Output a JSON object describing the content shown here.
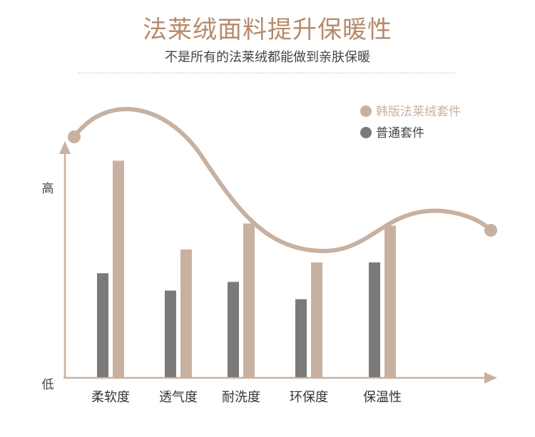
{
  "header": {
    "title": "法莱绒面料提升保暖性",
    "subtitle": "不是所有的法莱绒都能做到亲肤保暖"
  },
  "colors": {
    "accent": "#c8b1a0",
    "title": "#b68a6b",
    "gray": "#7a7a7a",
    "axis": "#c8b1a0"
  },
  "chart_data": {
    "type": "bar",
    "categories": [
      "柔软度",
      "透气度",
      "耐洗度",
      "环保度",
      "保温性"
    ],
    "series": [
      {
        "name": "普通套件",
        "color": "#7a7a7a",
        "values": [
          48,
          40,
          44,
          36,
          53
        ]
      },
      {
        "name": "韩版法莱绒套件",
        "color": "#c8b1a0",
        "values": [
          100,
          59,
          71,
          53,
          70
        ]
      }
    ],
    "ylim": [
      0,
      112
    ],
    "ytick_labels": {
      "high": "高",
      "low": "低"
    },
    "xlabel": "",
    "ylabel": "",
    "legend_position": "top-right",
    "grid": false
  }
}
